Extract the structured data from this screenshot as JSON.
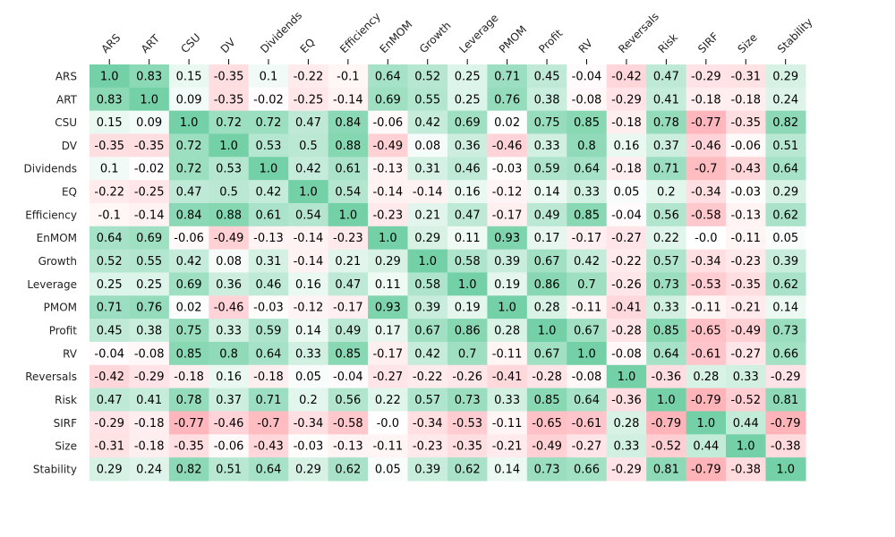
{
  "chart_data": {
    "type": "heatmap",
    "title": "",
    "xlabel": "",
    "ylabel": "",
    "x_tick_position": "top",
    "x_tick_rotation_deg": 45,
    "colorbar": false,
    "colors": {
      "positive": "#74d1a7",
      "negative": "#ffa0a8",
      "neutral": "#ffffff"
    },
    "labels": [
      "ARS",
      "ART",
      "CSU",
      "DV",
      "Dividends",
      "EQ",
      "Efficiency",
      "EnMOM",
      "Growth",
      "Leverage",
      "PMOM",
      "Profit",
      "RV",
      "Reversals",
      "Risk",
      "SIRF",
      "Size",
      "Stability"
    ],
    "matrix": [
      [
        1.0,
        0.83,
        0.15,
        -0.35,
        0.1,
        -0.22,
        -0.1,
        0.64,
        0.52,
        0.25,
        0.71,
        0.45,
        -0.04,
        -0.42,
        0.47,
        -0.29,
        -0.31,
        0.29
      ],
      [
        0.83,
        1.0,
        0.09,
        -0.35,
        -0.02,
        -0.25,
        -0.14,
        0.69,
        0.55,
        0.25,
        0.76,
        0.38,
        -0.08,
        -0.29,
        0.41,
        -0.18,
        -0.18,
        0.24
      ],
      [
        0.15,
        0.09,
        1.0,
        0.72,
        0.72,
        0.47,
        0.84,
        -0.06,
        0.42,
        0.69,
        0.02,
        0.75,
        0.85,
        -0.18,
        0.78,
        -0.77,
        -0.35,
        0.82
      ],
      [
        -0.35,
        -0.35,
        0.72,
        1.0,
        0.53,
        0.5,
        0.88,
        -0.49,
        0.08,
        0.36,
        -0.46,
        0.33,
        0.8,
        0.16,
        0.37,
        -0.46,
        -0.06,
        0.51
      ],
      [
        0.1,
        -0.02,
        0.72,
        0.53,
        1.0,
        0.42,
        0.61,
        -0.13,
        0.31,
        0.46,
        -0.03,
        0.59,
        0.64,
        -0.18,
        0.71,
        -0.7,
        -0.43,
        0.64
      ],
      [
        -0.22,
        -0.25,
        0.47,
        0.5,
        0.42,
        1.0,
        0.54,
        -0.14,
        -0.14,
        0.16,
        -0.12,
        0.14,
        0.33,
        0.05,
        0.2,
        -0.34,
        -0.03,
        0.29
      ],
      [
        -0.1,
        -0.14,
        0.84,
        0.88,
        0.61,
        0.54,
        1.0,
        -0.23,
        0.21,
        0.47,
        -0.17,
        0.49,
        0.85,
        -0.04,
        0.56,
        -0.58,
        -0.13,
        0.62
      ],
      [
        0.64,
        0.69,
        -0.06,
        -0.49,
        -0.13,
        -0.14,
        -0.23,
        1.0,
        0.29,
        0.11,
        0.93,
        0.17,
        -0.17,
        -0.27,
        0.22,
        -0.0,
        -0.11,
        0.05
      ],
      [
        0.52,
        0.55,
        0.42,
        0.08,
        0.31,
        -0.14,
        0.21,
        0.29,
        1.0,
        0.58,
        0.39,
        0.67,
        0.42,
        -0.22,
        0.57,
        -0.34,
        -0.23,
        0.39
      ],
      [
        0.25,
        0.25,
        0.69,
        0.36,
        0.46,
        0.16,
        0.47,
        0.11,
        0.58,
        1.0,
        0.19,
        0.86,
        0.7,
        -0.26,
        0.73,
        -0.53,
        -0.35,
        0.62
      ],
      [
        0.71,
        0.76,
        0.02,
        -0.46,
        -0.03,
        -0.12,
        -0.17,
        0.93,
        0.39,
        0.19,
        1.0,
        0.28,
        -0.11,
        -0.41,
        0.33,
        -0.11,
        -0.21,
        0.14
      ],
      [
        0.45,
        0.38,
        0.75,
        0.33,
        0.59,
        0.14,
        0.49,
        0.17,
        0.67,
        0.86,
        0.28,
        1.0,
        0.67,
        -0.28,
        0.85,
        -0.65,
        -0.49,
        0.73
      ],
      [
        -0.04,
        -0.08,
        0.85,
        0.8,
        0.64,
        0.33,
        0.85,
        -0.17,
        0.42,
        0.7,
        -0.11,
        0.67,
        1.0,
        -0.08,
        0.64,
        -0.61,
        -0.27,
        0.66
      ],
      [
        -0.42,
        -0.29,
        -0.18,
        0.16,
        -0.18,
        0.05,
        -0.04,
        -0.27,
        -0.22,
        -0.26,
        -0.41,
        -0.28,
        -0.08,
        1.0,
        -0.36,
        0.28,
        0.33,
        -0.29
      ],
      [
        0.47,
        0.41,
        0.78,
        0.37,
        0.71,
        0.2,
        0.56,
        0.22,
        0.57,
        0.73,
        0.33,
        0.85,
        0.64,
        -0.36,
        1.0,
        -0.79,
        -0.52,
        0.81
      ],
      [
        -0.29,
        -0.18,
        -0.77,
        -0.46,
        -0.7,
        -0.34,
        -0.58,
        -0.0,
        -0.34,
        -0.53,
        -0.11,
        -0.65,
        -0.61,
        0.28,
        -0.79,
        1.0,
        0.44,
        -0.79
      ],
      [
        -0.31,
        -0.18,
        -0.35,
        -0.06,
        -0.43,
        -0.03,
        -0.13,
        -0.11,
        -0.23,
        -0.35,
        -0.21,
        -0.49,
        -0.27,
        0.33,
        -0.52,
        0.44,
        1.0,
        -0.38
      ],
      [
        0.29,
        0.24,
        0.82,
        0.51,
        0.64,
        0.29,
        0.62,
        0.05,
        0.39,
        0.62,
        0.14,
        0.73,
        0.66,
        -0.29,
        0.81,
        -0.79,
        -0.38,
        1.0
      ]
    ],
    "display_text": [
      [
        "1.0",
        "0.83",
        "0.15",
        "-0.35",
        "0.1",
        "-0.22",
        "-0.1",
        "0.64",
        "0.52",
        "0.25",
        "0.71",
        "0.45",
        "-0.04",
        "-0.42",
        "0.47",
        "-0.29",
        "-0.31",
        "0.29"
      ],
      [
        "0.83",
        "1.0",
        "0.09",
        "-0.35",
        "-0.02",
        "-0.25",
        "-0.14",
        "0.69",
        "0.55",
        "0.25",
        "0.76",
        "0.38",
        "-0.08",
        "-0.29",
        "0.41",
        "-0.18",
        "-0.18",
        "0.24"
      ],
      [
        "0.15",
        "0.09",
        "1.0",
        "0.72",
        "0.72",
        "0.47",
        "0.84",
        "-0.06",
        "0.42",
        "0.69",
        "0.02",
        "0.75",
        "0.85",
        "-0.18",
        "0.78",
        "-0.77",
        "-0.35",
        "0.82"
      ],
      [
        "-0.35",
        "-0.35",
        "0.72",
        "1.0",
        "0.53",
        "0.5",
        "0.88",
        "-0.49",
        "0.08",
        "0.36",
        "-0.46",
        "0.33",
        "0.8",
        "0.16",
        "0.37",
        "-0.46",
        "-0.06",
        "0.51"
      ],
      [
        "0.1",
        "-0.02",
        "0.72",
        "0.53",
        "1.0",
        "0.42",
        "0.61",
        "-0.13",
        "0.31",
        "0.46",
        "-0.03",
        "0.59",
        "0.64",
        "-0.18",
        "0.71",
        "-0.7",
        "-0.43",
        "0.64"
      ],
      [
        "-0.22",
        "-0.25",
        "0.47",
        "0.5",
        "0.42",
        "1.0",
        "0.54",
        "-0.14",
        "-0.14",
        "0.16",
        "-0.12",
        "0.14",
        "0.33",
        "0.05",
        "0.2",
        "-0.34",
        "-0.03",
        "0.29"
      ],
      [
        "-0.1",
        "-0.14",
        "0.84",
        "0.88",
        "0.61",
        "0.54",
        "1.0",
        "-0.23",
        "0.21",
        "0.47",
        "-0.17",
        "0.49",
        "0.85",
        "-0.04",
        "0.56",
        "-0.58",
        "-0.13",
        "0.62"
      ],
      [
        "0.64",
        "0.69",
        "-0.06",
        "-0.49",
        "-0.13",
        "-0.14",
        "-0.23",
        "1.0",
        "0.29",
        "0.11",
        "0.93",
        "0.17",
        "-0.17",
        "-0.27",
        "0.22",
        "-0.0",
        "-0.11",
        "0.05"
      ],
      [
        "0.52",
        "0.55",
        "0.42",
        "0.08",
        "0.31",
        "-0.14",
        "0.21",
        "0.29",
        "1.0",
        "0.58",
        "0.39",
        "0.67",
        "0.42",
        "-0.22",
        "0.57",
        "-0.34",
        "-0.23",
        "0.39"
      ],
      [
        "0.25",
        "0.25",
        "0.69",
        "0.36",
        "0.46",
        "0.16",
        "0.47",
        "0.11",
        "0.58",
        "1.0",
        "0.19",
        "0.86",
        "0.7",
        "-0.26",
        "0.73",
        "-0.53",
        "-0.35",
        "0.62"
      ],
      [
        "0.71",
        "0.76",
        "0.02",
        "-0.46",
        "-0.03",
        "-0.12",
        "-0.17",
        "0.93",
        "0.39",
        "0.19",
        "1.0",
        "0.28",
        "-0.11",
        "-0.41",
        "0.33",
        "-0.11",
        "-0.21",
        "0.14"
      ],
      [
        "0.45",
        "0.38",
        "0.75",
        "0.33",
        "0.59",
        "0.14",
        "0.49",
        "0.17",
        "0.67",
        "0.86",
        "0.28",
        "1.0",
        "0.67",
        "-0.28",
        "0.85",
        "-0.65",
        "-0.49",
        "0.73"
      ],
      [
        "-0.04",
        "-0.08",
        "0.85",
        "0.8",
        "0.64",
        "0.33",
        "0.85",
        "-0.17",
        "0.42",
        "0.7",
        "-0.11",
        "0.67",
        "1.0",
        "-0.08",
        "0.64",
        "-0.61",
        "-0.27",
        "0.66"
      ],
      [
        "-0.42",
        "-0.29",
        "-0.18",
        "0.16",
        "-0.18",
        "0.05",
        "-0.04",
        "-0.27",
        "-0.22",
        "-0.26",
        "-0.41",
        "-0.28",
        "-0.08",
        "1.0",
        "-0.36",
        "0.28",
        "0.33",
        "-0.29"
      ],
      [
        "0.47",
        "0.41",
        "0.78",
        "0.37",
        "0.71",
        "0.2",
        "0.56",
        "0.22",
        "0.57",
        "0.73",
        "0.33",
        "0.85",
        "0.64",
        "-0.36",
        "1.0",
        "-0.79",
        "-0.52",
        "0.81"
      ],
      [
        "-0.29",
        "-0.18",
        "-0.77",
        "-0.46",
        "-0.7",
        "-0.34",
        "-0.58",
        "-0.0",
        "-0.34",
        "-0.53",
        "-0.11",
        "-0.65",
        "-0.61",
        "0.28",
        "-0.79",
        "1.0",
        "0.44",
        "-0.79"
      ],
      [
        "-0.31",
        "-0.18",
        "-0.35",
        "-0.06",
        "-0.43",
        "-0.03",
        "-0.13",
        "-0.11",
        "-0.23",
        "-0.35",
        "-0.21",
        "-0.49",
        "-0.27",
        "0.33",
        "-0.52",
        "0.44",
        "1.0",
        "-0.38"
      ],
      [
        "0.29",
        "0.24",
        "0.82",
        "0.51",
        "0.64",
        "0.29",
        "0.62",
        "0.05",
        "0.39",
        "0.62",
        "0.14",
        "0.73",
        "0.66",
        "-0.29",
        "0.81",
        "-0.79",
        "-0.38",
        "1.0"
      ]
    ]
  }
}
